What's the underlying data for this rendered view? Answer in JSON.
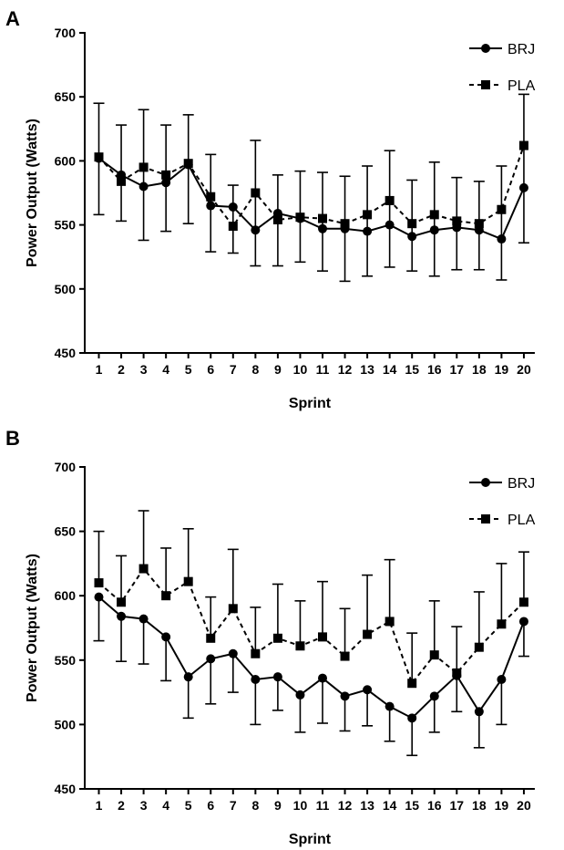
{
  "chart_data": [
    {
      "panel": "A",
      "type": "line",
      "xlabel": "Sprint",
      "ylabel": "Power Output (Watts)",
      "ylim": [
        450,
        700
      ],
      "yticks": [
        450,
        500,
        550,
        600,
        650,
        700
      ],
      "categories": [
        "1",
        "2",
        "3",
        "4",
        "5",
        "6",
        "7",
        "8",
        "9",
        "10",
        "11",
        "12",
        "13",
        "14",
        "15",
        "16",
        "17",
        "18",
        "19",
        "20"
      ],
      "legend_position": "top-right",
      "series": [
        {
          "name": "BRJ",
          "marker": "circle",
          "line": "solid",
          "color": "#000000",
          "values": [
            602,
            589,
            580,
            583,
            597,
            565,
            564,
            546,
            559,
            555,
            547,
            547,
            545,
            550,
            541,
            546,
            548,
            546,
            539,
            579
          ],
          "error_upper": [
            645,
            628,
            640,
            628,
            636,
            605,
            581,
            616,
            589,
            592,
            591,
            588,
            596,
            608,
            585,
            599,
            587,
            584,
            596,
            652
          ],
          "error_lower": [
            558,
            553,
            538,
            545,
            551,
            529,
            528,
            518,
            518,
            521,
            514,
            506,
            510,
            517,
            514,
            510,
            515,
            515,
            507,
            536
          ]
        },
        {
          "name": "PLA",
          "marker": "square",
          "line": "dashed",
          "color": "#000000",
          "values": [
            603,
            584,
            595,
            589,
            598,
            572,
            549,
            575,
            554,
            556,
            555,
            551,
            558,
            569,
            551,
            558,
            553,
            551,
            562,
            612
          ]
        }
      ]
    },
    {
      "panel": "B",
      "type": "line",
      "xlabel": "Sprint",
      "ylabel": "Power Output (Watts)",
      "ylim": [
        450,
        700
      ],
      "yticks": [
        450,
        500,
        550,
        600,
        650,
        700
      ],
      "categories": [
        "1",
        "2",
        "3",
        "4",
        "5",
        "6",
        "7",
        "8",
        "9",
        "10",
        "11",
        "12",
        "13",
        "14",
        "15",
        "16",
        "17",
        "18",
        "19",
        "20"
      ],
      "legend_position": "top-right",
      "series": [
        {
          "name": "BRJ",
          "marker": "circle",
          "line": "solid",
          "color": "#000000",
          "values": [
            599,
            584,
            582,
            568,
            537,
            551,
            555,
            535,
            537,
            523,
            536,
            522,
            527,
            514,
            505,
            522,
            538,
            510,
            535,
            580
          ],
          "error_lower": [
            565,
            549,
            547,
            534,
            505,
            516,
            525,
            500,
            511,
            494,
            501,
            495,
            499,
            487,
            476,
            494,
            510,
            482,
            500,
            553
          ]
        },
        {
          "name": "PLA",
          "marker": "square",
          "line": "dashed",
          "color": "#000000",
          "values": [
            610,
            595,
            621,
            600,
            611,
            567,
            590,
            555,
            567,
            561,
            568,
            553,
            570,
            580,
            532,
            554,
            540,
            560,
            578,
            595
          ],
          "error_upper": [
            650,
            631,
            666,
            637,
            652,
            599,
            636,
            591,
            609,
            596,
            611,
            590,
            616,
            628,
            571,
            596,
            576,
            603,
            625,
            634
          ]
        }
      ]
    }
  ]
}
